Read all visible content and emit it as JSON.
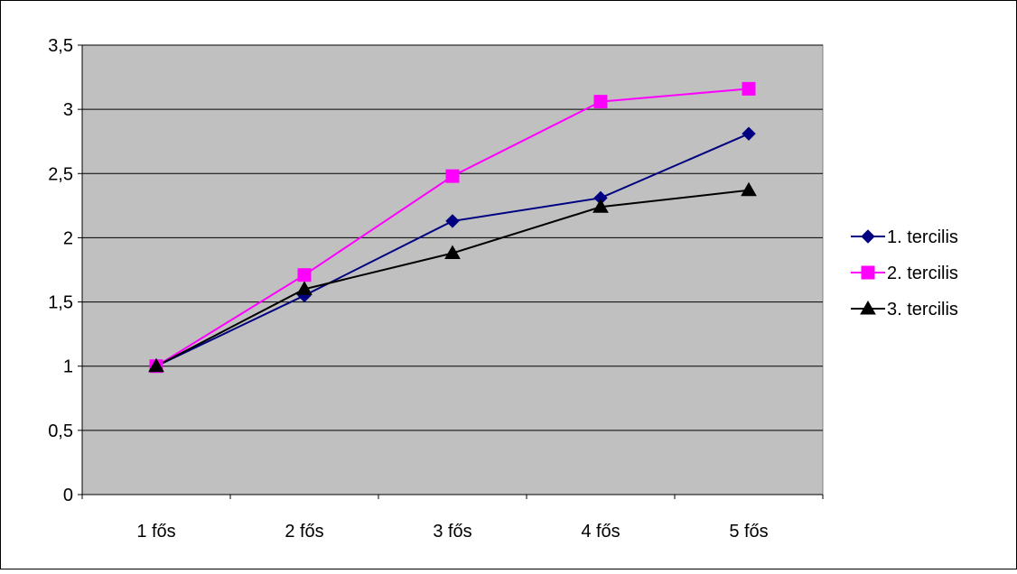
{
  "chart_data": {
    "type": "line",
    "categories": [
      "1 fős",
      "2 fős",
      "3 fős",
      "4 fős",
      "5 fős"
    ],
    "ylim": [
      0,
      3.5
    ],
    "yticks": [
      0,
      0.5,
      1,
      1.5,
      2,
      2.5,
      3,
      3.5
    ],
    "ytick_labels": [
      "0",
      "0,5",
      "1",
      "1,5",
      "2",
      "2,5",
      "3",
      "3,5"
    ],
    "grid": true,
    "legend_position": "right",
    "plot_background": "#c0c0c0",
    "series": [
      {
        "name": "1. tercilis",
        "values": [
          1.0,
          1.55,
          2.13,
          2.31,
          2.81
        ],
        "color": "#000080",
        "marker": "diamond"
      },
      {
        "name": "2. tercilis",
        "values": [
          1.0,
          1.71,
          2.48,
          3.06,
          3.16
        ],
        "color": "#ff00ff",
        "marker": "square"
      },
      {
        "name": "3. tercilis",
        "values": [
          1.0,
          1.6,
          1.88,
          2.24,
          2.37
        ],
        "color": "#000000",
        "marker": "triangle"
      }
    ]
  }
}
